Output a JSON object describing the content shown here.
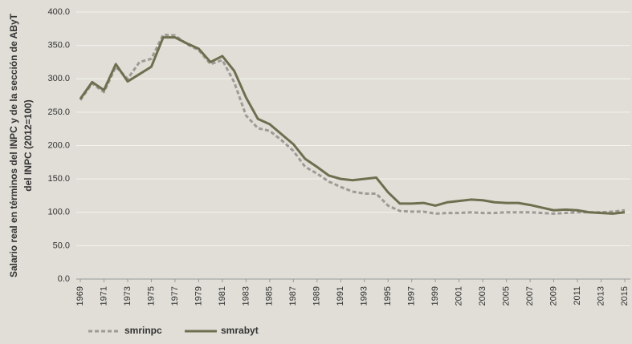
{
  "chart_data": {
    "type": "line",
    "y_label": [
      "Salario real en términos del INPC y de la sección de AByT",
      "del INPC (2012=100)"
    ],
    "x": [
      1969,
      1970,
      1971,
      1972,
      1973,
      1974,
      1975,
      1976,
      1977,
      1978,
      1979,
      1980,
      1981,
      1982,
      1983,
      1984,
      1985,
      1986,
      1987,
      1988,
      1989,
      1990,
      1991,
      1992,
      1993,
      1994,
      1995,
      1996,
      1997,
      1998,
      1999,
      2000,
      2001,
      2002,
      2003,
      2004,
      2005,
      2006,
      2007,
      2008,
      2009,
      2010,
      2011,
      2012,
      2013,
      2014,
      2015
    ],
    "xlim": [
      1969,
      2015
    ],
    "xticks": [
      1969,
      1971,
      1973,
      1975,
      1977,
      1979,
      1981,
      1983,
      1985,
      1987,
      1989,
      1991,
      1993,
      1995,
      1997,
      1999,
      2001,
      2003,
      2005,
      2007,
      2009,
      2011,
      2013,
      2015
    ],
    "ylim": [
      0,
      400
    ],
    "yticks": [
      {
        "value": 0,
        "label": "0.0"
      },
      {
        "value": 50,
        "label": "50.0"
      },
      {
        "value": 100,
        "label": "100.0"
      },
      {
        "value": 150,
        "label": "150.0"
      },
      {
        "value": 200,
        "label": "200.0"
      },
      {
        "value": 250,
        "label": "250.0"
      },
      {
        "value": 300,
        "label": "300.0"
      },
      {
        "value": 350,
        "label": "350.0"
      },
      {
        "value": 400,
        "label": "400.0"
      }
    ],
    "grid": true,
    "legend": "bottom-left",
    "series": [
      {
        "name": "smrinpc",
        "color": "#9c9b94",
        "dashed": true,
        "values": [
          268,
          293,
          280,
          318,
          300,
          325,
          330,
          366,
          365,
          352,
          343,
          322,
          328,
          295,
          245,
          226,
          222,
          208,
          192,
          168,
          158,
          146,
          138,
          131,
          128,
          128,
          110,
          102,
          101,
          101,
          98,
          99,
          99,
          100,
          99,
          99,
          100,
          100,
          100,
          99,
          98,
          99,
          100,
          100,
          100,
          101,
          103
        ]
      },
      {
        "name": "smrabyt",
        "color": "#6d6f4f",
        "dashed": false,
        "values": [
          270,
          295,
          283,
          322,
          296,
          307,
          318,
          362,
          362,
          353,
          345,
          325,
          334,
          312,
          272,
          240,
          232,
          217,
          202,
          180,
          168,
          155,
          150,
          148,
          150,
          152,
          130,
          113,
          113,
          114,
          110,
          115,
          117,
          119,
          118,
          115,
          114,
          114,
          111,
          107,
          103,
          104,
          103,
          100,
          99,
          98,
          100
        ]
      }
    ]
  }
}
